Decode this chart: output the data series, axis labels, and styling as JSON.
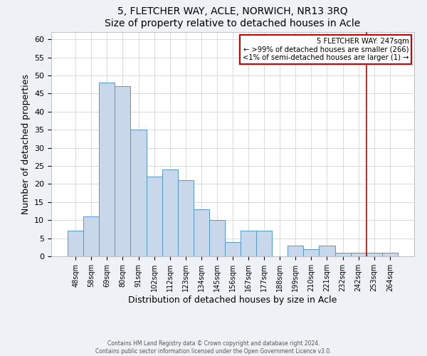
{
  "title": "5, FLETCHER WAY, ACLE, NORWICH, NR13 3RQ",
  "subtitle": "Size of property relative to detached houses in Acle",
  "xlabel": "Distribution of detached houses by size in Acle",
  "ylabel": "Number of detached properties",
  "bin_labels": [
    "48sqm",
    "58sqm",
    "69sqm",
    "80sqm",
    "91sqm",
    "102sqm",
    "112sqm",
    "123sqm",
    "134sqm",
    "145sqm",
    "156sqm",
    "167sqm",
    "177sqm",
    "188sqm",
    "199sqm",
    "210sqm",
    "221sqm",
    "232sqm",
    "242sqm",
    "253sqm",
    "264sqm"
  ],
  "bar_heights": [
    7,
    11,
    48,
    47,
    35,
    22,
    24,
    21,
    13,
    10,
    4,
    7,
    7,
    0,
    3,
    2,
    3,
    1,
    1,
    1,
    1
  ],
  "bar_color": "#c8d8ea",
  "bar_edge_color": "#5599cc",
  "vline_x_index": 18.5,
  "vline_color": "#cc0000",
  "ylim": [
    0,
    62
  ],
  "yticks": [
    0,
    5,
    10,
    15,
    20,
    25,
    30,
    35,
    40,
    45,
    50,
    55,
    60
  ],
  "legend_title": "5 FLETCHER WAY: 247sqm",
  "legend_line1": "← >99% of detached houses are smaller (266)",
  "legend_line2": "<1% of semi-detached houses are larger (1) →",
  "legend_box_color": "#cc0000",
  "footer_line1": "Contains HM Land Registry data © Crown copyright and database right 2024.",
  "footer_line2": "Contains public sector information licensed under the Open Government Licence v3.0.",
  "bg_color": "#eef2f7",
  "plot_bg_color": "#ffffff",
  "grid_color": "#cccccc"
}
